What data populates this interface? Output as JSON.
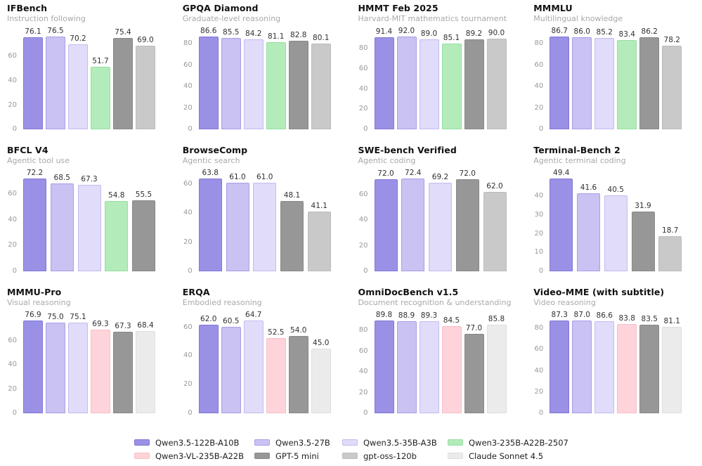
{
  "page": {
    "background": "#ffffff"
  },
  "models": {
    "Qwen3.5-122B-A10B": {
      "fill": "#9a91e6",
      "border": "#8078d6"
    },
    "Qwen3.5-27B": {
      "fill": "#c9c2f2",
      "border": "#a99fe8"
    },
    "Qwen3.5-35B-A3B": {
      "fill": "#e0dcf9",
      "border": "#c3bcf0"
    },
    "Qwen3-235B-A22B-2507": {
      "fill": "#b3ecba",
      "border": "#95dfa0"
    },
    "Qwen3-VL-235B-A22B": {
      "fill": "#ffd3da",
      "border": "#f6bfc8"
    },
    "GPT-5 mini": {
      "fill": "#979797",
      "border": "#888888"
    },
    "gpt-oss-120b": {
      "fill": "#c9c9c9",
      "border": "#bcbcbc"
    },
    "Claude Sonnet 4.5": {
      "fill": "#ebebeb",
      "border": "#dedede"
    }
  },
  "legend": {
    "rows": [
      [
        "Qwen3.5-122B-A10B",
        "Qwen3.5-27B",
        "Qwen3.5-35B-A3B",
        "Qwen3-235B-A22B-2507"
      ],
      [
        "Qwen3-VL-235B-A22B",
        "GPT-5 mini",
        "gpt-oss-120b",
        "Claude Sonnet 4.5"
      ]
    ]
  },
  "chart_data": [
    {
      "type": "bar",
      "title": "IFBench",
      "subtitle": "Instruction following",
      "yticks": [
        0,
        20,
        40,
        60
      ],
      "grid": false,
      "bars": [
        {
          "model": "Qwen3.5-122B-A10B",
          "value": 76.1
        },
        {
          "model": "Qwen3.5-27B",
          "value": 76.5
        },
        {
          "model": "Qwen3.5-35B-A3B",
          "value": 70.2
        },
        {
          "model": "Qwen3-235B-A22B-2507",
          "value": 51.7
        },
        {
          "model": "GPT-5 mini",
          "value": 75.4
        },
        {
          "model": "gpt-oss-120b",
          "value": 69.0
        }
      ]
    },
    {
      "type": "bar",
      "title": "GPQA Diamond",
      "subtitle": "Graduate-level reasoning",
      "yticks": [
        0,
        20,
        40,
        60,
        80
      ],
      "grid": false,
      "bars": [
        {
          "model": "Qwen3.5-122B-A10B",
          "value": 86.6
        },
        {
          "model": "Qwen3.5-27B",
          "value": 85.5
        },
        {
          "model": "Qwen3.5-35B-A3B",
          "value": 84.2
        },
        {
          "model": "Qwen3-235B-A22B-2507",
          "value": 81.1
        },
        {
          "model": "GPT-5 mini",
          "value": 82.8
        },
        {
          "model": "gpt-oss-120b",
          "value": 80.1
        }
      ]
    },
    {
      "type": "bar",
      "title": "HMMT Feb 2025",
      "subtitle": "Harvard-MIT mathematics tournament",
      "yticks": [
        0,
        20,
        40,
        60,
        80
      ],
      "grid": false,
      "bars": [
        {
          "model": "Qwen3.5-122B-A10B",
          "value": 91.4
        },
        {
          "model": "Qwen3.5-27B",
          "value": 92.0
        },
        {
          "model": "Qwen3.5-35B-A3B",
          "value": 89.0
        },
        {
          "model": "Qwen3-235B-A22B-2507",
          "value": 85.1
        },
        {
          "model": "GPT-5 mini",
          "value": 89.2
        },
        {
          "model": "gpt-oss-120b",
          "value": 90.0
        }
      ]
    },
    {
      "type": "bar",
      "title": "MMMLU",
      "subtitle": "Multilingual knowledge",
      "yticks": [
        0,
        20,
        40,
        60,
        80
      ],
      "grid": false,
      "bars": [
        {
          "model": "Qwen3.5-122B-A10B",
          "value": 86.7
        },
        {
          "model": "Qwen3.5-27B",
          "value": 86.0
        },
        {
          "model": "Qwen3.5-35B-A3B",
          "value": 85.2
        },
        {
          "model": "Qwen3-235B-A22B-2507",
          "value": 83.4
        },
        {
          "model": "GPT-5 mini",
          "value": 86.2
        },
        {
          "model": "gpt-oss-120b",
          "value": 78.2
        }
      ]
    },
    {
      "type": "bar",
      "title": "BFCL V4",
      "subtitle": "Agentic tool use",
      "yticks": [
        0,
        20,
        40,
        60
      ],
      "grid": false,
      "bars": [
        {
          "model": "Qwen3.5-122B-A10B",
          "value": 72.2
        },
        {
          "model": "Qwen3.5-27B",
          "value": 68.5
        },
        {
          "model": "Qwen3.5-35B-A3B",
          "value": 67.3
        },
        {
          "model": "Qwen3-235B-A22B-2507",
          "value": 54.8
        },
        {
          "model": "GPT-5 mini",
          "value": 55.5
        }
      ]
    },
    {
      "type": "bar",
      "title": "BrowseComp",
      "subtitle": "Agentic search",
      "yticks": [
        0,
        20,
        40,
        60
      ],
      "grid": false,
      "bars": [
        {
          "model": "Qwen3.5-122B-A10B",
          "value": 63.8
        },
        {
          "model": "Qwen3.5-27B",
          "value": 61.0
        },
        {
          "model": "Qwen3.5-35B-A3B",
          "value": 61.0
        },
        {
          "model": "GPT-5 mini",
          "value": 48.1
        },
        {
          "model": "gpt-oss-120b",
          "value": 41.1
        }
      ]
    },
    {
      "type": "bar",
      "title": "SWE-bench Verified",
      "subtitle": "Agentic coding",
      "yticks": [
        0,
        20,
        40,
        60
      ],
      "grid": false,
      "bars": [
        {
          "model": "Qwen3.5-122B-A10B",
          "value": 72.0
        },
        {
          "model": "Qwen3.5-27B",
          "value": 72.4
        },
        {
          "model": "Qwen3.5-35B-A3B",
          "value": 69.2
        },
        {
          "model": "GPT-5 mini",
          "value": 72.0
        },
        {
          "model": "gpt-oss-120b",
          "value": 62.0
        }
      ]
    },
    {
      "type": "bar",
      "title": "Terminal-Bench 2",
      "subtitle": "Agentic terminal coding",
      "yticks": [
        0,
        10,
        20,
        30,
        40
      ],
      "grid": false,
      "bars": [
        {
          "model": "Qwen3.5-122B-A10B",
          "value": 49.4
        },
        {
          "model": "Qwen3.5-27B",
          "value": 41.6
        },
        {
          "model": "Qwen3.5-35B-A3B",
          "value": 40.5
        },
        {
          "model": "GPT-5 mini",
          "value": 31.9
        },
        {
          "model": "gpt-oss-120b",
          "value": 18.7
        }
      ]
    },
    {
      "type": "bar",
      "title": "MMMU-Pro",
      "subtitle": "Visual reasoning",
      "yticks": [
        0,
        20,
        40,
        60
      ],
      "grid": false,
      "bars": [
        {
          "model": "Qwen3.5-122B-A10B",
          "value": 76.9
        },
        {
          "model": "Qwen3.5-27B",
          "value": 75.0
        },
        {
          "model": "Qwen3.5-35B-A3B",
          "value": 75.1
        },
        {
          "model": "Qwen3-VL-235B-A22B",
          "value": 69.3
        },
        {
          "model": "GPT-5 mini",
          "value": 67.3
        },
        {
          "model": "Claude Sonnet 4.5",
          "value": 68.4
        }
      ]
    },
    {
      "type": "bar",
      "title": "ERQA",
      "subtitle": "Embodied reasoning",
      "yticks": [
        0,
        20,
        40,
        60
      ],
      "grid": false,
      "bars": [
        {
          "model": "Qwen3.5-122B-A10B",
          "value": 62.0
        },
        {
          "model": "Qwen3.5-27B",
          "value": 60.5
        },
        {
          "model": "Qwen3.5-35B-A3B",
          "value": 64.7
        },
        {
          "model": "Qwen3-VL-235B-A22B",
          "value": 52.5
        },
        {
          "model": "GPT-5 mini",
          "value": 54.0
        },
        {
          "model": "Claude Sonnet 4.5",
          "value": 45.0
        }
      ]
    },
    {
      "type": "bar",
      "title": "OmniDocBench v1.5",
      "subtitle": "Document recognition & understanding",
      "yticks": [
        0,
        20,
        40,
        60,
        80
      ],
      "grid": false,
      "bars": [
        {
          "model": "Qwen3.5-122B-A10B",
          "value": 89.8
        },
        {
          "model": "Qwen3.5-27B",
          "value": 88.9
        },
        {
          "model": "Qwen3.5-35B-A3B",
          "value": 89.3
        },
        {
          "model": "Qwen3-VL-235B-A22B",
          "value": 84.5
        },
        {
          "model": "GPT-5 mini",
          "value": 77.0
        },
        {
          "model": "Claude Sonnet 4.5",
          "value": 85.8
        }
      ]
    },
    {
      "type": "bar",
      "title": "Video-MME (with subtitle)",
      "subtitle": "Video reasoning",
      "yticks": [
        0,
        20,
        40,
        60,
        80
      ],
      "grid": false,
      "bars": [
        {
          "model": "Qwen3.5-122B-A10B",
          "value": 87.3
        },
        {
          "model": "Qwen3.5-27B",
          "value": 87.0
        },
        {
          "model": "Qwen3.5-35B-A3B",
          "value": 86.6
        },
        {
          "model": "Qwen3-VL-235B-A22B",
          "value": 83.8
        },
        {
          "model": "GPT-5 mini",
          "value": 83.5
        },
        {
          "model": "Claude Sonnet 4.5",
          "value": 81.1
        }
      ]
    }
  ]
}
